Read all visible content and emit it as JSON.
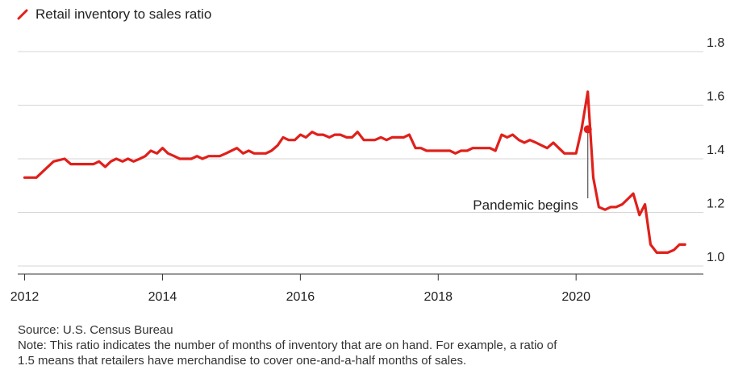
{
  "chart_data": {
    "type": "line",
    "title": "",
    "xlabel": "",
    "ylabel": "",
    "xlim": [
      2011.9,
      2021.8
    ],
    "ylim": [
      0.97,
      1.86
    ],
    "y_ticks": [
      {
        "value": 1.0,
        "label": "1.0"
      },
      {
        "value": 1.2,
        "label": "1.2"
      },
      {
        "value": 1.4,
        "label": "1.4"
      },
      {
        "value": 1.6,
        "label": "1.6"
      },
      {
        "value": 1.8,
        "label": "1.8"
      }
    ],
    "x_ticks": [
      {
        "value": 2012,
        "label": "2012"
      },
      {
        "value": 2014,
        "label": "2014"
      },
      {
        "value": 2016,
        "label": "2016"
      },
      {
        "value": 2018,
        "label": "2018"
      },
      {
        "value": 2020,
        "label": "2020"
      }
    ],
    "grid": "horizontal",
    "legend_position": "top-left",
    "series": [
      {
        "name": "Retail inventory to sales ratio",
        "color": "#e0201b",
        "x": [
          2012.0,
          2012.17,
          2012.42,
          2012.58,
          2012.67,
          2012.83,
          2013.0,
          2013.08,
          2013.17,
          2013.25,
          2013.33,
          2013.42,
          2013.5,
          2013.58,
          2013.67,
          2013.75,
          2013.83,
          2013.92,
          2014.0,
          2014.08,
          2014.17,
          2014.25,
          2014.33,
          2014.42,
          2014.5,
          2014.58,
          2014.67,
          2014.75,
          2014.83,
          2014.92,
          2015.0,
          2015.08,
          2015.17,
          2015.25,
          2015.33,
          2015.42,
          2015.5,
          2015.58,
          2015.67,
          2015.75,
          2015.83,
          2015.92,
          2016.0,
          2016.08,
          2016.17,
          2016.25,
          2016.33,
          2016.42,
          2016.5,
          2016.58,
          2016.67,
          2016.75,
          2016.83,
          2016.92,
          2017.0,
          2017.08,
          2017.17,
          2017.25,
          2017.33,
          2017.42,
          2017.5,
          2017.58,
          2017.67,
          2017.75,
          2017.83,
          2017.92,
          2018.0,
          2018.08,
          2018.17,
          2018.25,
          2018.33,
          2018.42,
          2018.5,
          2018.58,
          2018.67,
          2018.75,
          2018.83,
          2018.92,
          2019.0,
          2019.08,
          2019.17,
          2019.25,
          2019.33,
          2019.42,
          2019.5,
          2019.58,
          2019.67,
          2019.75,
          2019.83,
          2019.92,
          2020.0,
          2020.08,
          2020.17,
          2020.25,
          2020.33,
          2020.42,
          2020.5,
          2020.58,
          2020.67,
          2020.75,
          2020.83,
          2020.92,
          2021.0,
          2021.08,
          2021.17,
          2021.25,
          2021.33,
          2021.42,
          2021.5,
          2021.58
        ],
        "y": [
          1.33,
          1.33,
          1.39,
          1.4,
          1.38,
          1.38,
          1.38,
          1.39,
          1.37,
          1.39,
          1.4,
          1.39,
          1.4,
          1.39,
          1.4,
          1.41,
          1.43,
          1.42,
          1.44,
          1.42,
          1.41,
          1.4,
          1.4,
          1.4,
          1.41,
          1.4,
          1.41,
          1.41,
          1.41,
          1.42,
          1.43,
          1.44,
          1.42,
          1.43,
          1.42,
          1.42,
          1.42,
          1.43,
          1.45,
          1.48,
          1.47,
          1.47,
          1.49,
          1.48,
          1.5,
          1.49,
          1.49,
          1.48,
          1.49,
          1.49,
          1.48,
          1.48,
          1.5,
          1.47,
          1.47,
          1.47,
          1.48,
          1.47,
          1.48,
          1.48,
          1.48,
          1.49,
          1.44,
          1.44,
          1.43,
          1.43,
          1.43,
          1.43,
          1.43,
          1.42,
          1.43,
          1.43,
          1.44,
          1.44,
          1.44,
          1.44,
          1.43,
          1.49,
          1.48,
          1.49,
          1.47,
          1.46,
          1.47,
          1.46,
          1.45,
          1.44,
          1.46,
          1.44,
          1.42,
          1.42,
          1.42,
          1.51,
          1.65,
          1.33,
          1.22,
          1.21,
          1.22,
          1.22,
          1.23,
          1.25,
          1.27,
          1.19,
          1.23,
          1.08,
          1.05,
          1.05,
          1.05,
          1.06,
          1.08,
          1.08
        ]
      }
    ],
    "annotation": {
      "text": "Pandemic begins",
      "x": 2020.17,
      "y": 1.51
    }
  },
  "footer": {
    "source": "Source: U.S. Census Bureau",
    "note_line1": "Note: This ratio indicates the number of months of inventory that are on hand. For example, a ratio of",
    "note_line2": "1.5 means that retailers have merchandise to cover one-and-a-half months of sales."
  }
}
